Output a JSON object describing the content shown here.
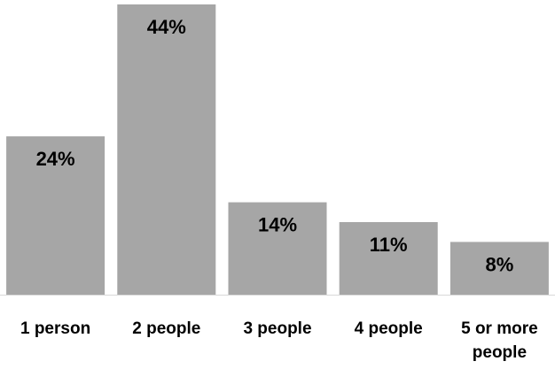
{
  "chart_data": {
    "type": "bar",
    "categories": [
      [
        "1 person"
      ],
      [
        "2 people"
      ],
      [
        "3 people"
      ],
      [
        "4 people"
      ],
      [
        "5 or more",
        "people"
      ]
    ],
    "values": [
      24,
      44,
      14,
      11,
      8
    ],
    "data_labels": [
      "24%",
      "44%",
      "14%",
      "11%",
      "8%"
    ],
    "title": "",
    "xlabel": "",
    "ylabel": "",
    "ylim": [
      0,
      44
    ],
    "grid": false,
    "legend": "none",
    "colors": {
      "bar": "#a6a6a6",
      "axis": "#d9d9d9",
      "text": "#000000",
      "background": "#ffffff"
    }
  }
}
